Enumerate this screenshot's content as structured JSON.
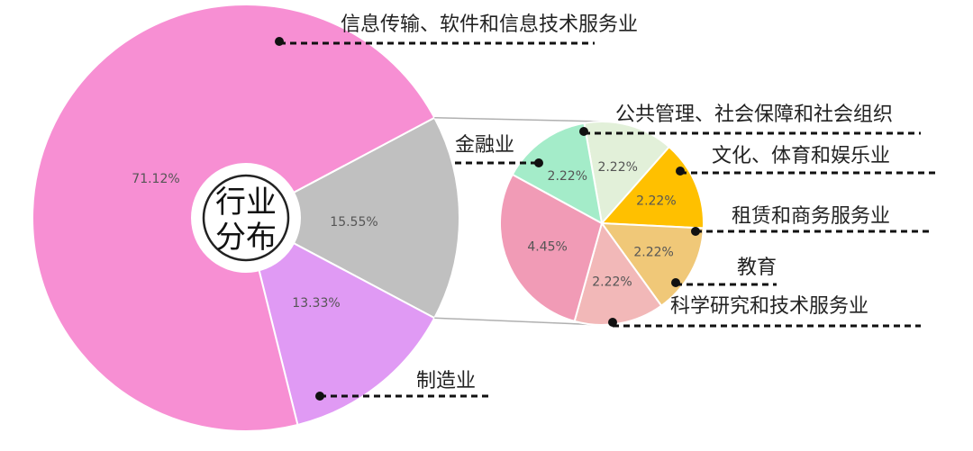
{
  "chart_data": {
    "type": "pie",
    "center_label": [
      "行业",
      "分布"
    ],
    "main": [
      {
        "label": "信息传输、软件和信息技术服务业",
        "value": 71.12,
        "value_text": "71.12%",
        "color": "#f78fd3"
      },
      {
        "label": "",
        "value": 15.55,
        "value_text": "15.55%",
        "color": "#c0c0c0"
      },
      {
        "label": "制造业",
        "value": 13.33,
        "value_text": "13.33%",
        "color": "#e09af4"
      }
    ],
    "secondary": [
      {
        "label": "公共管理、社会保障和社会组织",
        "value": 2.22,
        "value_text": "2.22%",
        "color": "#e2f0d9"
      },
      {
        "label": "文化、体育和娱乐业",
        "value": 2.22,
        "value_text": "2.22%",
        "color": "#ffc000"
      },
      {
        "label": "租赁和商务服务业",
        "value": 2.22,
        "value_text": "2.22%",
        "color": "#f0c878"
      },
      {
        "label": "教育",
        "value": 2.22,
        "value_text": "2.22%",
        "color": "#f2b8b8"
      },
      {
        "label": "科学研究和技术服务业",
        "value": 4.45,
        "value_text": "4.45%",
        "color": "#f19bb6"
      },
      {
        "label": "金融业",
        "value": 2.22,
        "value_text": "2.22%",
        "color": "#a4ecc9"
      }
    ]
  }
}
